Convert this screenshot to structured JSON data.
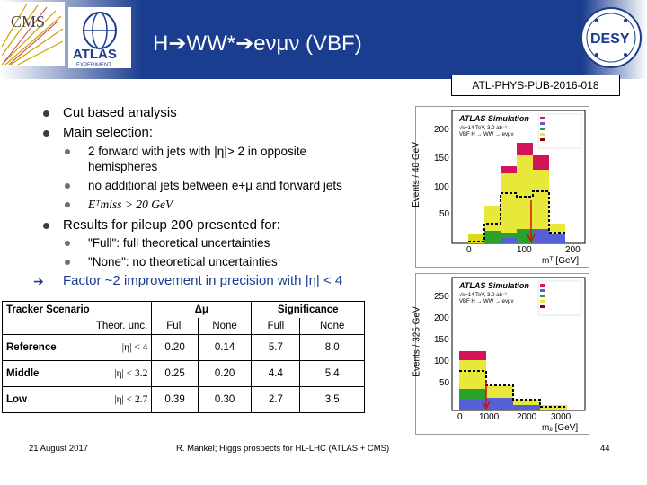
{
  "header": {
    "title": "H➔WW*➔eνμν (VBF)",
    "logos": [
      "CMS",
      "ATLAS EXPERIMENT",
      "DESY"
    ]
  },
  "pub_ref": "ATL-PHYS-PUB-2016-018",
  "bullets": {
    "cut_based": "Cut based analysis",
    "main_selection": "Main selection:",
    "sel1": "2 forward with jets with |η|> 2 in opposite",
    "sel1b": "hemispheres",
    "sel2": "no additional jets between e+μ and forward jets",
    "sel3": "Eᵀmiss > 20 GeV",
    "results": "Results for pileup 200 presented for:",
    "full": "\"Full\": full theoretical uncertainties",
    "none": "\"None\": no theoretical uncertainties",
    "factor": "Factor ~2 improvement in precision with |η| < 4"
  },
  "table": {
    "h_tracker": "Tracker Scenario",
    "h_delta": "Δμ",
    "h_sig": "Significance",
    "h_theor": "Theor. unc.",
    "h_full1": "Full",
    "h_none1": "None",
    "h_full2": "Full",
    "h_none2": "None",
    "rows": [
      {
        "name": "Reference",
        "cut": "|η| < 4",
        "d_full": "0.20",
        "d_none": "0.14",
        "s_full": "5.7",
        "s_none": "8.0"
      },
      {
        "name": "Middle",
        "cut": "|η| < 3.2",
        "d_full": "0.25",
        "d_none": "0.20",
        "s_full": "4.4",
        "s_none": "5.4"
      },
      {
        "name": "Low",
        "cut": "|η| < 2.7",
        "d_full": "0.39",
        "d_none": "0.30",
        "s_full": "2.7",
        "s_none": "3.5"
      }
    ]
  },
  "plots": {
    "top": {
      "atlas": "ATLAS Simulation",
      "ylabel": "Events / 40 GeV",
      "xlabel": "mᵀ [GeV]",
      "info1": "√s=14 TeV, 3.0 ab⁻¹",
      "info2": "VBF H → WW → eνμν",
      "yticks": [
        "200",
        "150",
        "100",
        "50"
      ],
      "xticks": [
        "0",
        "100",
        "200"
      ]
    },
    "bottom": {
      "atlas": "ATLAS Simulation",
      "ylabel": "Events / 325 GeV",
      "xlabel": "mⱼⱼ [GeV]",
      "info1": "√s=14 TeV, 3.0 ab⁻¹",
      "info2": "VBF H → WW → eνμν",
      "yticks": [
        "250",
        "200",
        "150",
        "100",
        "50"
      ],
      "xticks": [
        "0",
        "1000",
        "2000",
        "3000"
      ]
    }
  },
  "footer": {
    "date": "21 August 2017",
    "center": "R. Mankel; Higgs prospects for HL-LHC (ATLAS + CMS)",
    "page": "44"
  },
  "colors": {
    "header_bg": "#1a3d8f",
    "accent": "#1a3d8f"
  }
}
